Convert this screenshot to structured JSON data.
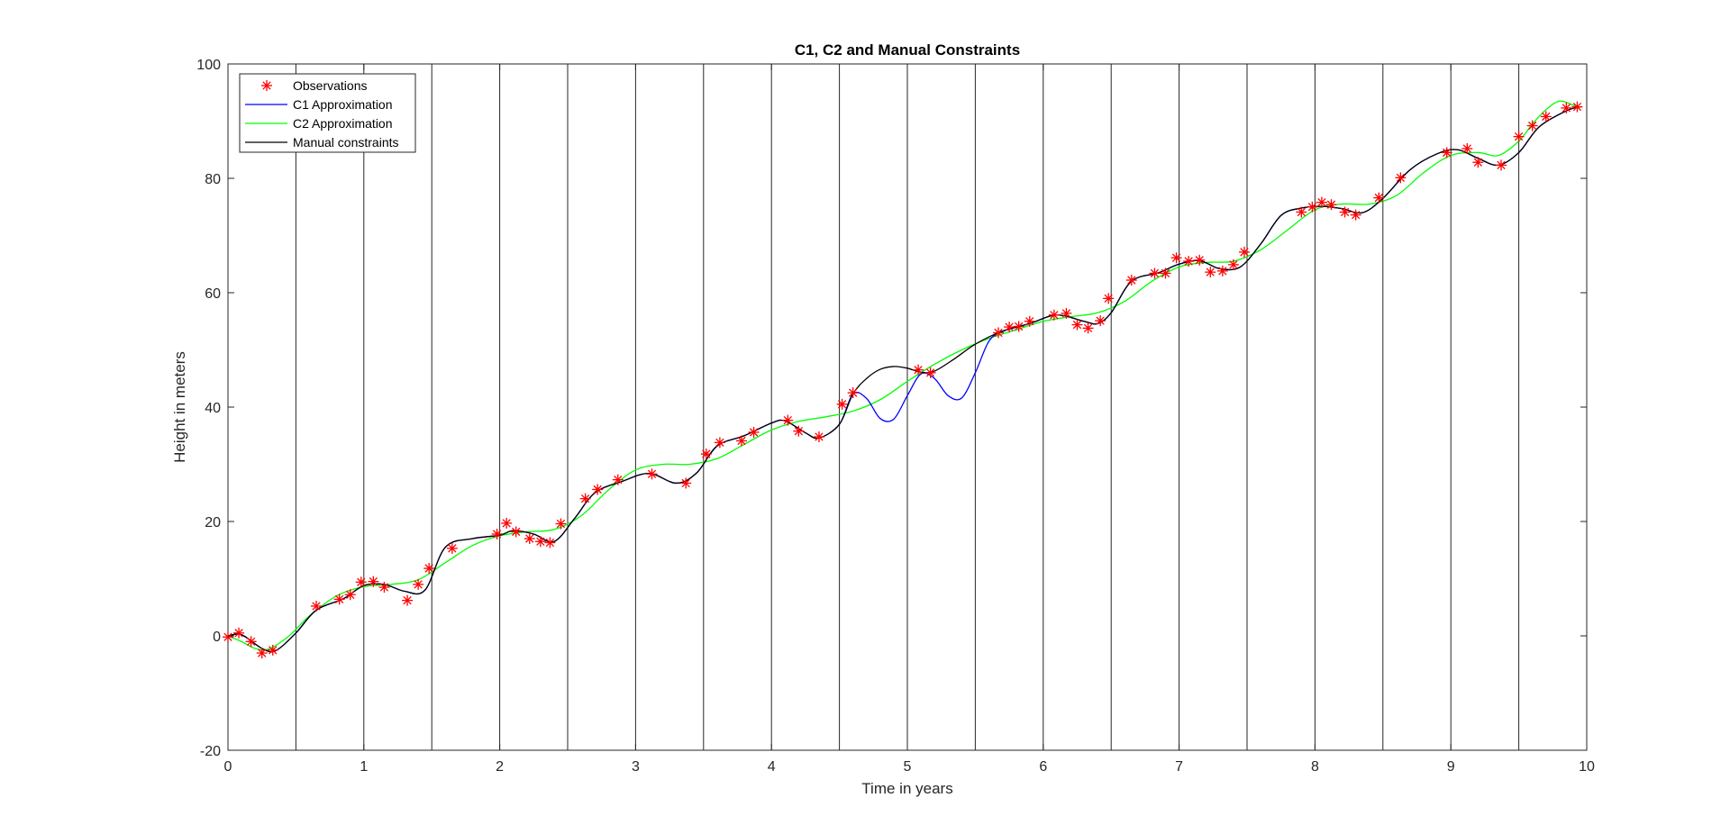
{
  "chart_data": {
    "type": "line",
    "title": "C1, C2 and Manual Constraints",
    "xlabel": "Time in years",
    "ylabel": "Height in meters",
    "xlim": [
      0,
      10
    ],
    "ylim": [
      -20,
      100
    ],
    "xticks": [
      0,
      1,
      2,
      3,
      4,
      5,
      6,
      7,
      8,
      9,
      10
    ],
    "yticks": [
      -20,
      0,
      20,
      40,
      60,
      80,
      100
    ],
    "vertical_lines": [
      0.5,
      1,
      1.5,
      2,
      2.5,
      3,
      3.5,
      4,
      4.5,
      5,
      5.5,
      6,
      6.5,
      7,
      7.5,
      8,
      8.5,
      9,
      9.5
    ],
    "legend_position": "top-left",
    "grid": false,
    "colors": {
      "observations": "#ff0000",
      "c1": "#0000ff",
      "c2": "#00ff00",
      "manual": "#000000",
      "vertical_lines": "#262626"
    },
    "series": [
      {
        "name": "Observations",
        "style": "marker",
        "x": [
          0.0,
          0.08,
          0.17,
          0.25,
          0.33,
          0.65,
          0.82,
          0.9,
          0.98,
          1.07,
          1.15,
          1.32,
          1.4,
          1.48,
          1.65,
          1.98,
          2.05,
          2.12,
          2.22,
          2.3,
          2.37,
          2.45,
          2.63,
          2.72,
          2.87,
          3.12,
          3.37,
          3.52,
          3.62,
          3.78,
          3.87,
          4.12,
          4.2,
          4.35,
          4.52,
          4.6,
          5.08,
          5.17,
          5.67,
          5.75,
          5.82,
          5.9,
          6.08,
          6.17,
          6.25,
          6.33,
          6.42,
          6.48,
          6.65,
          6.82,
          6.9,
          6.98,
          7.07,
          7.15,
          7.23,
          7.32,
          7.4,
          7.48,
          7.9,
          7.98,
          8.05,
          8.12,
          8.22,
          8.3,
          8.47,
          8.63,
          8.97,
          9.12,
          9.2,
          9.37,
          9.5,
          9.6,
          9.7,
          9.85,
          9.93
        ],
        "y": [
          -0.2,
          0.5,
          -1.0,
          -3.0,
          -2.5,
          5.2,
          6.4,
          7.2,
          9.4,
          9.5,
          8.5,
          6.2,
          9.0,
          11.8,
          15.3,
          17.8,
          19.7,
          18.2,
          17.0,
          16.5,
          16.3,
          19.6,
          24.0,
          25.6,
          27.3,
          28.3,
          26.7,
          31.8,
          33.8,
          34.1,
          35.6,
          37.7,
          35.8,
          34.8,
          40.5,
          42.5,
          46.5,
          46.0,
          53.0,
          54.0,
          54.1,
          55.0,
          56.1,
          56.4,
          54.4,
          53.8,
          55.1,
          59.0,
          62.2,
          63.4,
          63.4,
          66.1,
          65.5,
          65.7,
          63.6,
          63.8,
          64.9,
          67.1,
          74.1,
          75.0,
          75.8,
          75.4,
          74.1,
          73.6,
          76.6,
          80.1,
          84.5,
          85.2,
          82.8,
          82.3,
          87.3,
          89.2,
          90.8,
          92.3,
          92.5
        ]
      },
      {
        "name": "C1 Approximation",
        "style": "line",
        "x": [
          0.0,
          0.1,
          0.25,
          0.35,
          0.5,
          0.65,
          0.85,
          1.0,
          1.15,
          1.3,
          1.45,
          1.6,
          1.8,
          2.0,
          2.1,
          2.25,
          2.4,
          2.55,
          2.7,
          2.9,
          3.1,
          3.3,
          3.45,
          3.6,
          3.8,
          4.0,
          4.1,
          4.25,
          4.35,
          4.5,
          4.6,
          4.7,
          4.8,
          4.9,
          5.0,
          5.1,
          5.2,
          5.3,
          5.4,
          5.5,
          5.6,
          5.7,
          5.9,
          6.1,
          6.3,
          6.4,
          6.5,
          6.65,
          6.85,
          7.0,
          7.15,
          7.3,
          7.45,
          7.6,
          7.75,
          7.9,
          8.05,
          8.2,
          8.35,
          8.5,
          8.7,
          8.9,
          9.05,
          9.2,
          9.35,
          9.5,
          9.65,
          9.85,
          9.95
        ],
        "y": [
          0.0,
          0.2,
          -2.2,
          -2.6,
          0.5,
          4.5,
          6.5,
          8.8,
          9.0,
          7.8,
          8.0,
          15.5,
          17.0,
          17.6,
          18.4,
          17.8,
          16.5,
          20.5,
          25.0,
          27.0,
          28.4,
          26.7,
          28.5,
          33.2,
          35.0,
          37.2,
          37.6,
          35.5,
          34.6,
          37.0,
          42.3,
          41.5,
          38.0,
          37.9,
          42.0,
          45.8,
          45.0,
          42.0,
          41.6,
          46.0,
          51.5,
          53.2,
          54.6,
          56.1,
          55.0,
          54.6,
          56.5,
          62.0,
          63.5,
          65.0,
          65.6,
          64.2,
          64.5,
          68.5,
          73.5,
          74.8,
          75.1,
          74.7,
          74.0,
          76.5,
          81.5,
          84.3,
          85.0,
          83.5,
          82.3,
          84.5,
          89.0,
          91.8,
          92.5
        ]
      },
      {
        "name": "C2 Approximation",
        "style": "line",
        "x": [
          0.0,
          0.1,
          0.2,
          0.3,
          0.45,
          0.6,
          0.8,
          1.0,
          1.2,
          1.4,
          1.6,
          1.8,
          2.0,
          2.2,
          2.4,
          2.6,
          2.8,
          3.0,
          3.2,
          3.4,
          3.6,
          3.8,
          4.0,
          4.2,
          4.4,
          4.6,
          4.8,
          5.0,
          5.2,
          5.4,
          5.6,
          5.8,
          6.0,
          6.2,
          6.4,
          6.6,
          6.8,
          7.0,
          7.2,
          7.4,
          7.6,
          7.8,
          8.0,
          8.2,
          8.4,
          8.6,
          8.8,
          9.0,
          9.2,
          9.35,
          9.5,
          9.6,
          9.7,
          9.8,
          9.9,
          9.95
        ],
        "y": [
          0.0,
          -1.0,
          -2.2,
          -2.3,
          0.0,
          3.5,
          7.0,
          8.6,
          9.0,
          9.8,
          12.8,
          15.8,
          17.5,
          18.2,
          18.6,
          21.0,
          25.5,
          29.0,
          30.0,
          30.0,
          31.0,
          33.5,
          36.0,
          37.5,
          38.3,
          39.3,
          41.3,
          44.5,
          47.5,
          50.0,
          52.0,
          53.5,
          55.0,
          55.8,
          56.5,
          58.5,
          62.0,
          64.5,
          65.3,
          65.5,
          67.5,
          71.0,
          74.5,
          75.5,
          75.5,
          77.0,
          81.0,
          84.0,
          84.5,
          84.0,
          86.5,
          89.5,
          92.0,
          93.5,
          92.8,
          92.4
        ]
      },
      {
        "name": "Manual constraints",
        "style": "line",
        "x": [
          0.0,
          0.1,
          0.25,
          0.35,
          0.5,
          0.65,
          0.85,
          1.0,
          1.15,
          1.3,
          1.45,
          1.6,
          1.8,
          2.0,
          2.1,
          2.25,
          2.4,
          2.55,
          2.7,
          2.9,
          3.1,
          3.3,
          3.45,
          3.6,
          3.8,
          4.0,
          4.1,
          4.25,
          4.35,
          4.5,
          4.6,
          4.7,
          4.8,
          4.9,
          5.0,
          5.1,
          5.2,
          5.35,
          5.5,
          5.7,
          5.9,
          6.1,
          6.3,
          6.4,
          6.5,
          6.65,
          6.85,
          7.0,
          7.15,
          7.3,
          7.45,
          7.6,
          7.75,
          7.9,
          8.05,
          8.2,
          8.35,
          8.5,
          8.7,
          8.9,
          9.05,
          9.2,
          9.35,
          9.5,
          9.65,
          9.85,
          9.95
        ],
        "y": [
          0.0,
          0.2,
          -2.2,
          -2.6,
          0.5,
          4.5,
          6.5,
          8.8,
          9.0,
          7.8,
          8.0,
          15.5,
          17.0,
          17.6,
          18.4,
          17.8,
          16.5,
          20.5,
          25.0,
          27.0,
          28.4,
          26.7,
          28.5,
          33.2,
          35.0,
          37.2,
          37.6,
          35.5,
          34.6,
          37.0,
          42.3,
          45.0,
          46.6,
          47.1,
          46.8,
          46.1,
          46.3,
          48.5,
          51.0,
          53.3,
          54.6,
          56.1,
          55.0,
          54.6,
          56.5,
          62.0,
          63.5,
          65.0,
          65.6,
          64.2,
          64.5,
          68.5,
          73.5,
          74.8,
          75.1,
          74.7,
          74.0,
          76.5,
          81.5,
          84.3,
          85.0,
          83.5,
          82.3,
          84.5,
          89.0,
          91.8,
          92.5
        ]
      }
    ]
  }
}
